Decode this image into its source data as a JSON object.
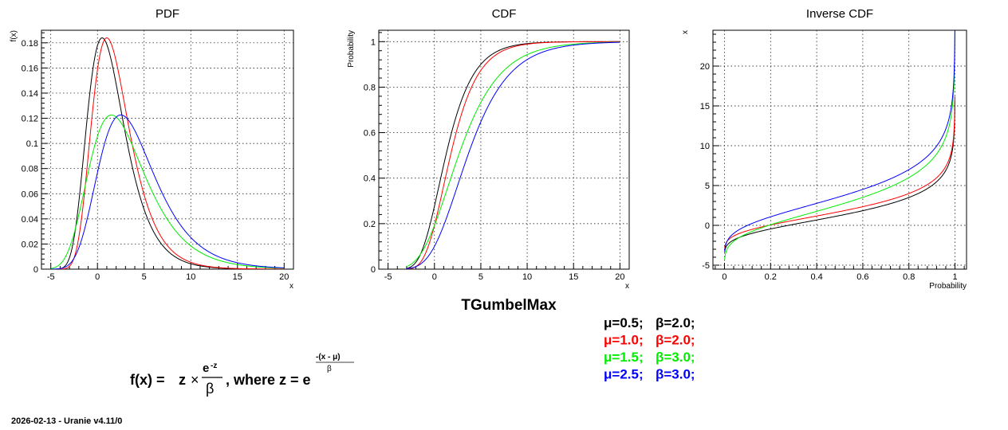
{
  "chart_data": [
    {
      "type": "line",
      "title": "PDF",
      "xlabel": "x",
      "ylabel": "f(x)",
      "xlim": [
        -6,
        21
      ],
      "ylim": [
        0,
        0.19
      ],
      "xticks": [
        -5,
        0,
        5,
        10,
        15,
        20
      ],
      "yticks": [
        0,
        0.02,
        0.04,
        0.06,
        0.08,
        0.1,
        0.12,
        0.14,
        0.16,
        0.18
      ],
      "yticklabels": [
        "0",
        "0.02",
        "0.04",
        "0.06",
        "0.08",
        "0.1",
        "0.12",
        "0.14",
        "0.16",
        "0.18"
      ],
      "grid": true,
      "x_range": [
        -5,
        20
      ],
      "series": [
        {
          "color": "#000000",
          "mu": 0.5,
          "beta": 2.0
        },
        {
          "color": "#ff0000",
          "mu": 1.0,
          "beta": 2.0
        },
        {
          "color": "#00ee00",
          "mu": 1.5,
          "beta": 3.0
        },
        {
          "color": "#0000ff",
          "mu": 2.5,
          "beta": 3.0
        }
      ]
    },
    {
      "type": "line",
      "title": "CDF",
      "xlabel": "x",
      "ylabel": "Probability",
      "xlim": [
        -6,
        21
      ],
      "ylim": [
        0,
        1.05
      ],
      "xticks": [
        -5,
        0,
        5,
        10,
        15,
        20
      ],
      "yticks": [
        0,
        0.2,
        0.4,
        0.6,
        0.8,
        1
      ],
      "yticklabels": [
        "0",
        "0.2",
        "0.4",
        "0.6",
        "0.8",
        "1"
      ],
      "grid": true,
      "x_range": [
        -3,
        20
      ],
      "series": [
        {
          "color": "#000000",
          "mu": 0.5,
          "beta": 2.0
        },
        {
          "color": "#ff0000",
          "mu": 1.0,
          "beta": 2.0
        },
        {
          "color": "#00ee00",
          "mu": 1.5,
          "beta": 3.0
        },
        {
          "color": "#0000ff",
          "mu": 2.5,
          "beta": 3.0
        }
      ]
    },
    {
      "type": "line",
      "title": "Inverse CDF",
      "xlabel": "Probability",
      "ylabel": "x",
      "xlim": [
        -0.05,
        1.05
      ],
      "ylim": [
        -5.5,
        24.5
      ],
      "xticks": [
        0,
        0.2,
        0.4,
        0.6,
        0.8,
        1
      ],
      "xticklabels": [
        "0",
        "0.2",
        "0.4",
        "0.6",
        "0.8",
        "1"
      ],
      "yticks": [
        -5,
        0,
        5,
        10,
        15,
        20
      ],
      "grid": true,
      "p_range": [
        0.001,
        0.9995
      ],
      "series": [
        {
          "color": "#000000",
          "mu": 0.5,
          "beta": 2.0
        },
        {
          "color": "#ff0000",
          "mu": 1.0,
          "beta": 2.0
        },
        {
          "color": "#00ee00",
          "mu": 1.5,
          "beta": 3.0
        },
        {
          "color": "#0000ff",
          "mu": 2.5,
          "beta": 3.0
        }
      ]
    }
  ],
  "main_title": "TGumbelMax",
  "legend": [
    {
      "mu_text": "μ=0.5;",
      "beta_text": "β=2.0;",
      "color": "#000000"
    },
    {
      "mu_text": "μ=1.0;",
      "beta_text": "β=2.0;",
      "color": "#ff0000"
    },
    {
      "mu_text": "μ=1.5;",
      "beta_text": "β=3.0;",
      "color": "#00ee00"
    },
    {
      "mu_text": "μ=2.5;",
      "beta_text": "β=3.0;",
      "color": "#0000ff"
    }
  ],
  "formula": {
    "lhs": "f(x) =",
    "z": "z",
    "times": "×",
    "numerator": "e",
    "numerator_sup": "-z",
    "denominator": "β",
    "where": ", where z = e",
    "exp_numerator": "-(x - μ)",
    "exp_denominator": "β"
  },
  "footer": "2026-02-13 - Uranie v4.11/0"
}
